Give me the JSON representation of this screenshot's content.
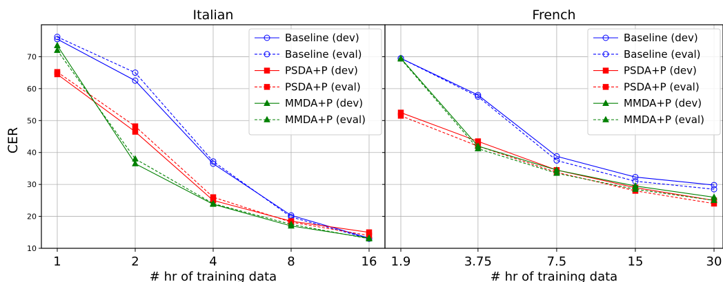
{
  "ylabel": "CER",
  "chart_data": [
    {
      "type": "line",
      "title": "Italian",
      "xlabel": "# hr of training data",
      "x_scale": "log2",
      "x": [
        1,
        2,
        4,
        8,
        16
      ],
      "x_tick_labels": [
        "1",
        "2",
        "4",
        "8",
        "16"
      ],
      "ylim": [
        10,
        80
      ],
      "y_ticks": [
        10,
        20,
        30,
        40,
        50,
        60,
        70
      ],
      "grid": true,
      "legend_position": "top-right",
      "series": [
        {
          "name": "Baseline (dev)",
          "values": [
            75.5,
            62.5,
            36.5,
            20.3,
            13.2
          ],
          "color": "#0000ff",
          "dash": "solid",
          "marker": "circle-open"
        },
        {
          "name": "Baseline (eval)",
          "values": [
            76.2,
            65.0,
            37.2,
            19.8,
            13.0
          ],
          "color": "#0000ff",
          "dash": "dashed",
          "marker": "circle-open"
        },
        {
          "name": "PSDA+P (dev)",
          "values": [
            64.5,
            46.5,
            25.0,
            18.5,
            15.0
          ],
          "color": "#ff0000",
          "dash": "solid",
          "marker": "square"
        },
        {
          "name": "PSDA+P (eval)",
          "values": [
            65.2,
            48.2,
            26.0,
            18.2,
            14.0
          ],
          "color": "#ff0000",
          "dash": "dashed",
          "marker": "square"
        },
        {
          "name": "MMDA+P (dev)",
          "values": [
            73.5,
            36.5,
            23.8,
            17.0,
            13.2
          ],
          "color": "#008000",
          "dash": "solid",
          "marker": "triangle"
        },
        {
          "name": "MMDA+P (eval)",
          "values": [
            72.0,
            38.0,
            24.0,
            17.5,
            13.0
          ],
          "color": "#008000",
          "dash": "dashed",
          "marker": "triangle"
        }
      ]
    },
    {
      "type": "line",
      "title": "French",
      "xlabel": "# hr of training data",
      "x_scale": "log2",
      "x": [
        1.9,
        3.75,
        7.5,
        15,
        30
      ],
      "x_tick_labels": [
        "1.9",
        "3.75",
        "7.5",
        "15",
        "30"
      ],
      "ylim": [
        10,
        80
      ],
      "y_ticks": [
        10,
        20,
        30,
        40,
        50,
        60,
        70
      ],
      "grid": true,
      "legend_position": "top-right",
      "series": [
        {
          "name": "Baseline (dev)",
          "values": [
            69.5,
            58.0,
            38.8,
            32.3,
            29.8
          ],
          "color": "#0000ff",
          "dash": "solid",
          "marker": "circle-open"
        },
        {
          "name": "Baseline (eval)",
          "values": [
            69.5,
            57.5,
            37.5,
            31.0,
            28.5
          ],
          "color": "#0000ff",
          "dash": "dashed",
          "marker": "circle-open"
        },
        {
          "name": "PSDA+P (dev)",
          "values": [
            52.5,
            43.5,
            34.5,
            29.0,
            25.0
          ],
          "color": "#ff0000",
          "dash": "solid",
          "marker": "square"
        },
        {
          "name": "PSDA+P (eval)",
          "values": [
            51.5,
            42.0,
            33.8,
            28.0,
            24.0
          ],
          "color": "#ff0000",
          "dash": "dashed",
          "marker": "square"
        },
        {
          "name": "MMDA+P (dev)",
          "values": [
            69.5,
            42.0,
            34.5,
            29.5,
            26.0
          ],
          "color": "#008000",
          "dash": "solid",
          "marker": "triangle"
        },
        {
          "name": "MMDA+P (eval)",
          "values": [
            69.3,
            41.2,
            33.5,
            28.5,
            25.0
          ],
          "color": "#008000",
          "dash": "dashed",
          "marker": "triangle"
        }
      ]
    }
  ]
}
